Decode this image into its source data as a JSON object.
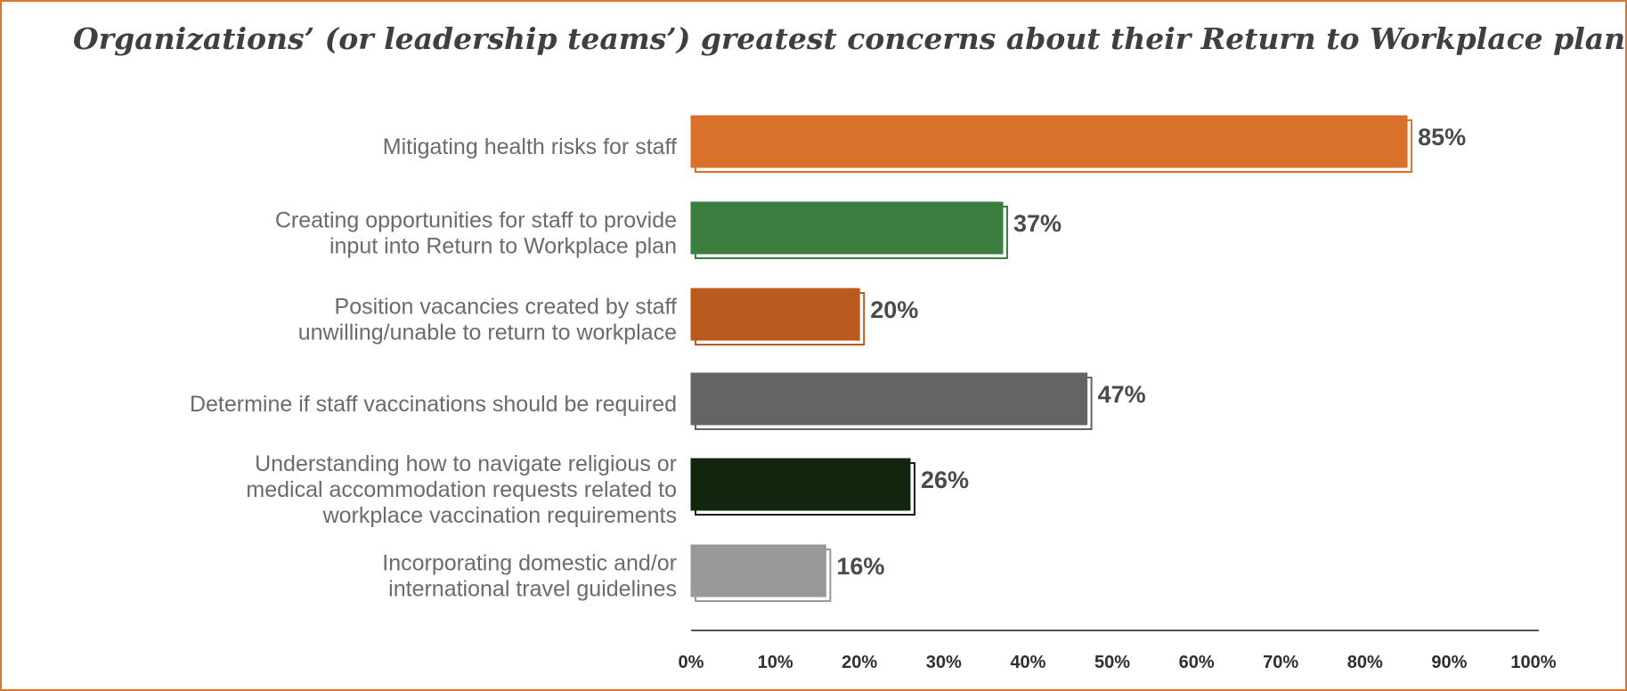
{
  "chart_data": {
    "type": "bar",
    "orientation": "horizontal",
    "title": "Organizations’ (or leadership teams’) greatest concerns about their Return to Workplace plan",
    "categories": [
      [
        "Mitigating health risks for staff"
      ],
      [
        "Creating opportunities for staff to provide",
        "input into Return to Workplace plan"
      ],
      [
        "Position vacancies created by staff",
        "unwilling/unable to return to workplace"
      ],
      [
        "Determine if staff vaccinations should be required"
      ],
      [
        "Understanding how to navigate religious or",
        "medical accommodation requests related to",
        "workplace vaccination requirements"
      ],
      [
        "Incorporating domestic and/or",
        "international travel guidelines"
      ]
    ],
    "values": [
      85,
      37,
      20,
      47,
      26,
      16
    ],
    "value_labels": [
      "85%",
      "37%",
      "20%",
      "47%",
      "26%",
      "16%"
    ],
    "bar_colors": [
      "#d9712b",
      "#3b7e3f",
      "#bb5a1f",
      "#636466",
      "#11260d",
      "#97989a"
    ],
    "xlim": [
      0,
      100
    ],
    "x_ticks": [
      0,
      10,
      20,
      30,
      40,
      50,
      60,
      70,
      80,
      90,
      100
    ],
    "x_tick_labels": [
      "0%",
      "10%",
      "20%",
      "30%",
      "40%",
      "50%",
      "60%",
      "70%",
      "80%",
      "90%",
      "100%"
    ],
    "grid": false,
    "legend": "none"
  }
}
